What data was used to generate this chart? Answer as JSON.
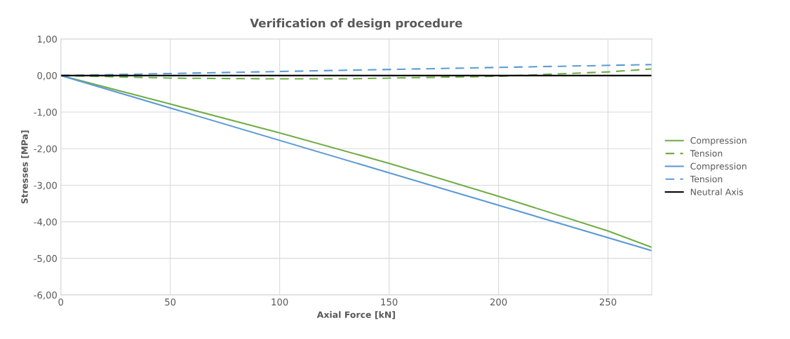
{
  "chart_data": {
    "type": "line",
    "title": "Verification of design procedure",
    "xlabel": "Axial Force [kN]",
    "ylabel": "Stresses [MPa]",
    "xlim": [
      0,
      270
    ],
    "xticks": [
      0,
      50,
      100,
      150,
      200,
      250
    ],
    "ylim": [
      -6,
      1
    ],
    "yticks": [
      {
        "value": -6,
        "label": "-6,00"
      },
      {
        "value": -5,
        "label": "-5,00"
      },
      {
        "value": -4,
        "label": "-4,00"
      },
      {
        "value": -3,
        "label": "-3,00"
      },
      {
        "value": -2,
        "label": "-2,00"
      },
      {
        "value": -1,
        "label": "-1,00"
      },
      {
        "value": 0,
        "label": "0,00"
      },
      {
        "value": 1,
        "label": "1,00"
      }
    ],
    "grid": true,
    "legend": "right",
    "series": [
      {
        "name": "Compression",
        "color": "#70ad47",
        "line_style": "solid",
        "x": [
          0,
          50,
          100,
          150,
          200,
          250,
          270
        ],
        "values": [
          0,
          -0.78,
          -1.57,
          -2.4,
          -3.3,
          -4.25,
          -4.7
        ]
      },
      {
        "name": "Tension",
        "color": "#70ad47",
        "line_style": "dashed",
        "x": [
          0,
          50,
          100,
          130,
          150,
          200,
          250,
          270
        ],
        "values": [
          0,
          -0.07,
          -0.09,
          -0.09,
          -0.07,
          -0.02,
          0.1,
          0.18
        ]
      },
      {
        "name": "Compression",
        "color": "#5b9bd5",
        "line_style": "solid",
        "x": [
          0,
          270
        ],
        "values": [
          0,
          -4.79
        ]
      },
      {
        "name": "Tension",
        "color": "#5b9bd5",
        "line_style": "dashed",
        "x": [
          0,
          270
        ],
        "values": [
          0,
          0.3
        ]
      },
      {
        "name": "Neutral Axis",
        "color": "#000000",
        "line_style": "solid",
        "x": [
          0,
          270
        ],
        "values": [
          0,
          0
        ]
      }
    ]
  }
}
